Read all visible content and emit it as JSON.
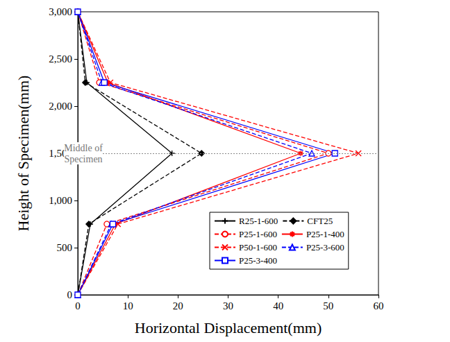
{
  "chart_data": {
    "type": "line",
    "x_label": "Horizontal Displacement(mm)",
    "y_label": "Height of Specimen(mm)",
    "y": [
      0,
      750,
      1500,
      2250,
      3000
    ],
    "series": [
      {
        "name": "R25-1-600",
        "color": "#000000",
        "line_style": "solid",
        "marker": "plus",
        "x": [
          0,
          2.5,
          18.8,
          1.8,
          0
        ]
      },
      {
        "name": "CFT25",
        "color": "#000000",
        "line_style": "dashed",
        "marker": "diamond",
        "x": [
          0,
          2.2,
          24.7,
          1.5,
          0
        ]
      },
      {
        "name": "P25-1-600",
        "color": "#ff0000",
        "line_style": "dashed",
        "marker": "circle",
        "x": [
          0,
          5.8,
          50.0,
          4.3,
          0
        ]
      },
      {
        "name": "P25-1-400",
        "color": "#ff0000",
        "line_style": "solid",
        "marker": "asterisk",
        "x": [
          0,
          7.5,
          44.5,
          6.0,
          0
        ]
      },
      {
        "name": "P50-1-600",
        "color": "#ff0000",
        "line_style": "dashed",
        "marker": "x",
        "x": [
          0,
          8.0,
          56.0,
          6.5,
          0
        ]
      },
      {
        "name": "P25-3-600",
        "color": "#0000ff",
        "line_style": "dashed",
        "marker": "triangle",
        "x": [
          0,
          6.7,
          46.7,
          4.8,
          0
        ]
      },
      {
        "name": "P25-3-400",
        "color": "#0000ff",
        "line_style": "solid",
        "marker": "square",
        "x": [
          0,
          7.0,
          51.3,
          5.3,
          0
        ]
      }
    ],
    "annotations": [
      {
        "text": "Middle of\nSpecimen",
        "y": 1500
      }
    ],
    "xlim": [
      0,
      60
    ],
    "xticks": [
      0,
      10,
      20,
      30,
      40,
      50,
      60
    ],
    "ylim": [
      0,
      3000
    ],
    "yticks": [
      0,
      500,
      1000,
      1500,
      2000,
      2500,
      3000
    ],
    "grid": false,
    "legend": "lower right"
  }
}
